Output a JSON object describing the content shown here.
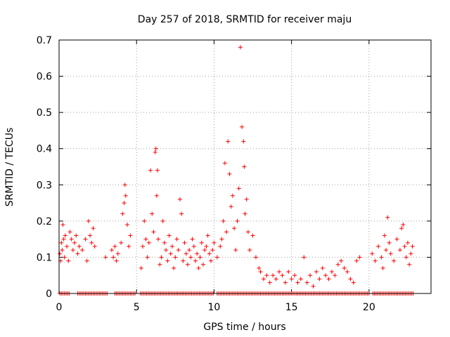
{
  "chart_data": {
    "type": "scatter",
    "title": "Day 257 of 2018, SRMTID for receiver maju",
    "xlabel": "GPS time / hours",
    "ylabel": "SRMTID / TECUs",
    "xlim": [
      0,
      24
    ],
    "ylim": [
      0,
      0.7
    ],
    "xticks": [
      0,
      5,
      10,
      15,
      20
    ],
    "xtick_labels": [
      "0",
      "5",
      "10",
      "15",
      "20"
    ],
    "yticks": [
      0,
      0.1,
      0.2,
      0.3,
      0.4,
      0.5,
      0.6,
      0.7
    ],
    "ytick_labels": [
      "0",
      "0.1",
      "0.2",
      "0.3",
      "0.4",
      "0.5",
      "0.6",
      "0.7"
    ],
    "grid": true,
    "marker": "+",
    "color": "#ff0000",
    "series": [
      {
        "name": "SRMTID",
        "points": [
          [
            0.05,
            0.11
          ],
          [
            0.1,
            0.09
          ],
          [
            0.15,
            0.14
          ],
          [
            0.2,
            0.12
          ],
          [
            0.25,
            0.19
          ],
          [
            0.3,
            0.15
          ],
          [
            0.35,
            0.1
          ],
          [
            0.4,
            0.16
          ],
          [
            0.5,
            0.13
          ],
          [
            0.6,
            0.09
          ],
          [
            0.7,
            0.17
          ],
          [
            0.8,
            0.15
          ],
          [
            0.9,
            0.12
          ],
          [
            1.0,
            0.14
          ],
          [
            1.1,
            0.16
          ],
          [
            1.2,
            0.11
          ],
          [
            1.3,
            0.13
          ],
          [
            1.5,
            0.12
          ],
          [
            1.7,
            0.15
          ],
          [
            1.8,
            0.09
          ],
          [
            1.9,
            0.2
          ],
          [
            2.0,
            0.16
          ],
          [
            2.1,
            0.14
          ],
          [
            2.2,
            0.18
          ],
          [
            2.3,
            0.13
          ],
          [
            3.0,
            0.1
          ],
          [
            3.4,
            0.12
          ],
          [
            3.5,
            0.1
          ],
          [
            3.6,
            0.13
          ],
          [
            3.7,
            0.09
          ],
          [
            3.8,
            0.11
          ],
          [
            4.0,
            0.14
          ],
          [
            4.1,
            0.22
          ],
          [
            4.2,
            0.25
          ],
          [
            4.25,
            0.3
          ],
          [
            4.3,
            0.27
          ],
          [
            4.4,
            0.19
          ],
          [
            4.5,
            0.13
          ],
          [
            4.6,
            0.16
          ],
          [
            5.3,
            0.07
          ],
          [
            5.4,
            0.13
          ],
          [
            5.5,
            0.2
          ],
          [
            5.6,
            0.15
          ],
          [
            5.7,
            0.1
          ],
          [
            5.8,
            0.14
          ],
          [
            5.9,
            0.34
          ],
          [
            6.0,
            0.22
          ],
          [
            6.1,
            0.17
          ],
          [
            6.2,
            0.39
          ],
          [
            6.25,
            0.4
          ],
          [
            6.3,
            0.27
          ],
          [
            6.35,
            0.34
          ],
          [
            6.4,
            0.15
          ],
          [
            6.5,
            0.08
          ],
          [
            6.6,
            0.1
          ],
          [
            6.7,
            0.2
          ],
          [
            6.8,
            0.14
          ],
          [
            6.9,
            0.12
          ],
          [
            7.0,
            0.09
          ],
          [
            7.1,
            0.16
          ],
          [
            7.2,
            0.11
          ],
          [
            7.3,
            0.13
          ],
          [
            7.4,
            0.07
          ],
          [
            7.5,
            0.1
          ],
          [
            7.6,
            0.15
          ],
          [
            7.7,
            0.12
          ],
          [
            7.8,
            0.26
          ],
          [
            7.9,
            0.22
          ],
          [
            8.0,
            0.09
          ],
          [
            8.1,
            0.14
          ],
          [
            8.2,
            0.11
          ],
          [
            8.3,
            0.08
          ],
          [
            8.4,
            0.12
          ],
          [
            8.5,
            0.1
          ],
          [
            8.6,
            0.15
          ],
          [
            8.7,
            0.13
          ],
          [
            8.8,
            0.09
          ],
          [
            8.9,
            0.11
          ],
          [
            9.0,
            0.07
          ],
          [
            9.1,
            0.1
          ],
          [
            9.2,
            0.14
          ],
          [
            9.3,
            0.08
          ],
          [
            9.4,
            0.12
          ],
          [
            9.5,
            0.13
          ],
          [
            9.6,
            0.16
          ],
          [
            9.7,
            0.11
          ],
          [
            9.8,
            0.09
          ],
          [
            9.9,
            0.12
          ],
          [
            10.0,
            0.14
          ],
          [
            10.2,
            0.1
          ],
          [
            10.4,
            0.13
          ],
          [
            10.5,
            0.15
          ],
          [
            10.6,
            0.2
          ],
          [
            10.7,
            0.36
          ],
          [
            10.8,
            0.17
          ],
          [
            10.9,
            0.42
          ],
          [
            11.0,
            0.33
          ],
          [
            11.1,
            0.24
          ],
          [
            11.2,
            0.27
          ],
          [
            11.3,
            0.18
          ],
          [
            11.4,
            0.12
          ],
          [
            11.5,
            0.2
          ],
          [
            11.6,
            0.29
          ],
          [
            11.7,
            0.68
          ],
          [
            11.8,
            0.46
          ],
          [
            11.9,
            0.42
          ],
          [
            11.95,
            0.35
          ],
          [
            12.0,
            0.22
          ],
          [
            12.1,
            0.26
          ],
          [
            12.2,
            0.17
          ],
          [
            12.3,
            0.12
          ],
          [
            12.5,
            0.16
          ],
          [
            12.7,
            0.1
          ],
          [
            12.9,
            0.07
          ],
          [
            13.0,
            0.06
          ],
          [
            13.2,
            0.04
          ],
          [
            13.4,
            0.05
          ],
          [
            13.6,
            0.03
          ],
          [
            13.8,
            0.05
          ],
          [
            14.0,
            0.04
          ],
          [
            14.2,
            0.06
          ],
          [
            14.4,
            0.05
          ],
          [
            14.6,
            0.03
          ],
          [
            14.8,
            0.06
          ],
          [
            15.0,
            0.04
          ],
          [
            15.2,
            0.05
          ],
          [
            15.4,
            0.03
          ],
          [
            15.6,
            0.04
          ],
          [
            15.8,
            0.1
          ],
          [
            16.0,
            0.03
          ],
          [
            16.2,
            0.05
          ],
          [
            16.4,
            0.02
          ],
          [
            16.6,
            0.06
          ],
          [
            16.8,
            0.04
          ],
          [
            17.0,
            0.07
          ],
          [
            17.2,
            0.05
          ],
          [
            17.4,
            0.04
          ],
          [
            17.6,
            0.06
          ],
          [
            17.8,
            0.05
          ],
          [
            18.0,
            0.08
          ],
          [
            18.2,
            0.09
          ],
          [
            18.4,
            0.07
          ],
          [
            18.6,
            0.06
          ],
          [
            18.8,
            0.04
          ],
          [
            19.0,
            0.03
          ],
          [
            19.2,
            0.09
          ],
          [
            19.4,
            0.1
          ],
          [
            20.2,
            0.11
          ],
          [
            20.4,
            0.09
          ],
          [
            20.6,
            0.13
          ],
          [
            20.8,
            0.1
          ],
          [
            20.9,
            0.07
          ],
          [
            21.0,
            0.16
          ],
          [
            21.1,
            0.12
          ],
          [
            21.2,
            0.21
          ],
          [
            21.3,
            0.14
          ],
          [
            21.4,
            0.11
          ],
          [
            21.6,
            0.09
          ],
          [
            21.8,
            0.15
          ],
          [
            22.0,
            0.12
          ],
          [
            22.1,
            0.18
          ],
          [
            22.2,
            0.19
          ],
          [
            22.3,
            0.13
          ],
          [
            22.4,
            0.1
          ],
          [
            22.5,
            0.14
          ],
          [
            22.6,
            0.08
          ],
          [
            22.7,
            0.11
          ],
          [
            22.8,
            0.13
          ]
        ]
      }
    ],
    "zero_rows": [
      [
        0.05,
        0.7
      ],
      [
        1.2,
        3.1
      ],
      [
        3.6,
        4.95
      ],
      [
        5.25,
        9.95
      ],
      [
        10.2,
        20.0
      ],
      [
        20.25,
        22.9
      ]
    ]
  }
}
